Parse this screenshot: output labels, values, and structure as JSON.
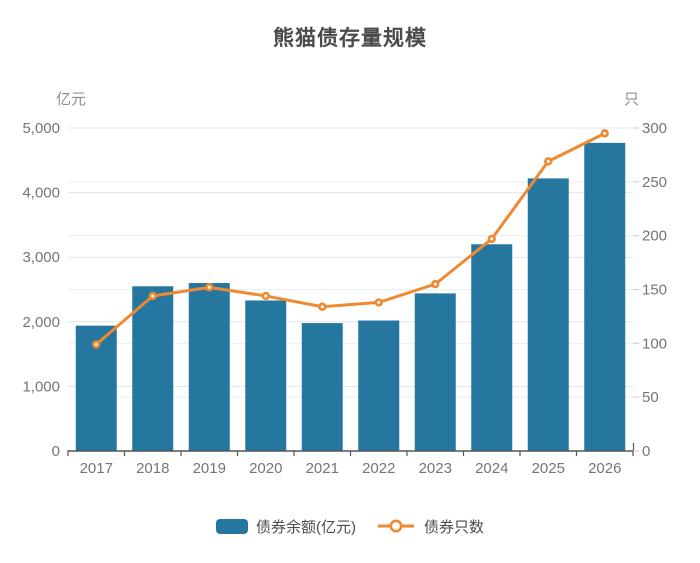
{
  "title": "熊猫债存量规模",
  "left_axis": {
    "unit": "亿元",
    "min": 0,
    "max": 5000,
    "tick_interval": 1000,
    "tick_labels": [
      "0",
      "1,000",
      "2,000",
      "3,000",
      "4,000",
      "5,000"
    ]
  },
  "right_axis": {
    "unit": "只",
    "min": 0,
    "max": 300,
    "tick_interval": 50,
    "tick_labels": [
      "0",
      "50",
      "100",
      "150",
      "200",
      "250",
      "300"
    ]
  },
  "colors": {
    "bar": "#26779f",
    "line": "#ee8a31",
    "title_text": "#4a4a4a",
    "tick_text": "#757575",
    "axis_unit_text": "#8a8f98",
    "x_axis_line": "#555555",
    "gridline_left": "#dfe6f0",
    "gridline_right": "#e9eef6",
    "right_tick_mark": "#c9ced6",
    "background": "#ffffff"
  },
  "chart_data": {
    "type": "bar",
    "subtype": "bar-line combo, dual y-axes",
    "title": "熊猫债存量规模",
    "categories": [
      "2017",
      "2018",
      "2019",
      "2020",
      "2021",
      "2022",
      "2023",
      "2024",
      "2025",
      "2026"
    ],
    "series": [
      {
        "name": "债券余额(亿元)",
        "type": "bar",
        "axis": "left",
        "color": "#26779f",
        "values": [
          1940,
          2550,
          2600,
          2330,
          1980,
          2020,
          2440,
          3200,
          4220,
          4770
        ]
      },
      {
        "name": "债券只数",
        "type": "line",
        "axis": "right",
        "color": "#ee8a31",
        "values": [
          99,
          144,
          152,
          144,
          134,
          138,
          155,
          197,
          269,
          295
        ]
      }
    ],
    "left_ylabel": "亿元",
    "right_ylabel": "只",
    "left_ylim": [
      0,
      5000
    ],
    "right_ylim": [
      0,
      300
    ],
    "xlabel": "",
    "grid": true,
    "legend_position": "bottom"
  }
}
